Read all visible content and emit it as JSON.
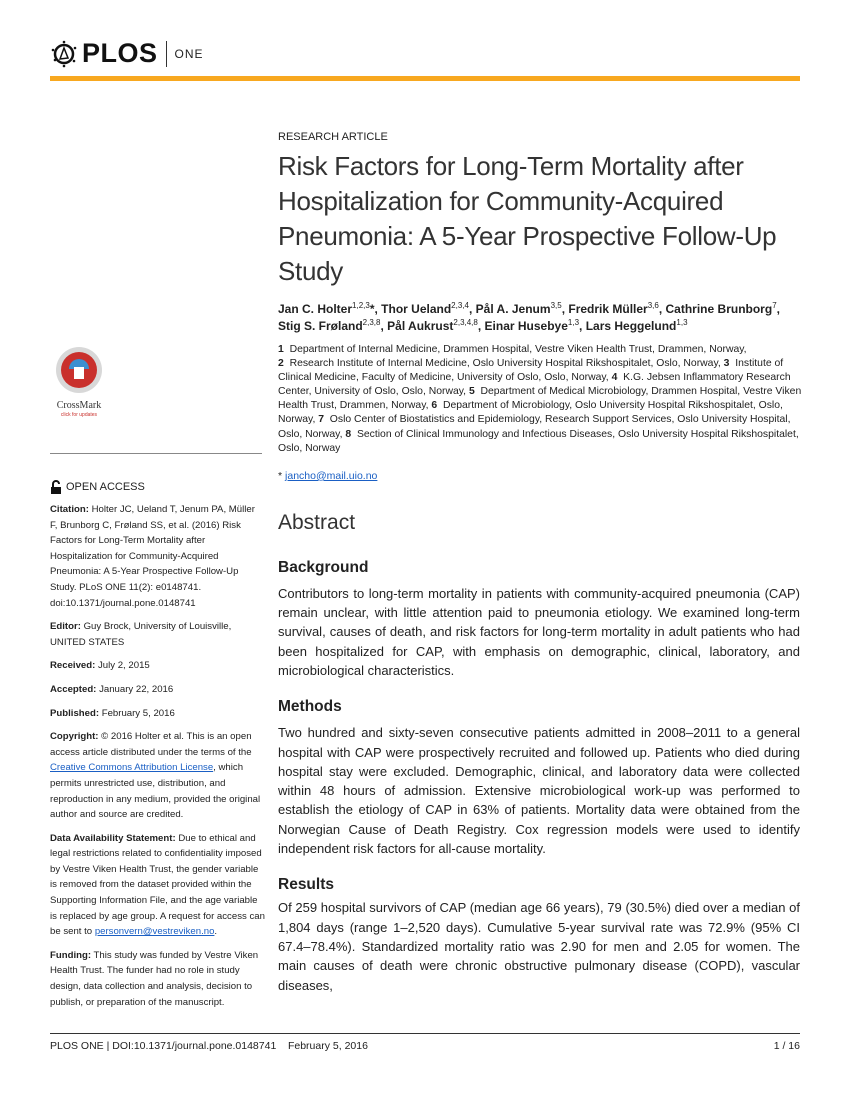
{
  "header": {
    "brand": "PLOS",
    "journal": "ONE",
    "accent": "#f8a81f"
  },
  "article_type": "RESEARCH ARTICLE",
  "title": "Risk Factors for Long-Term Mortality after Hospitalization for Community-Acquired Pneumonia: A 5-Year Prospective Follow-Up Study",
  "authors": [
    {
      "name": "Jan C. Holter",
      "sup": "1,2,3",
      "mark": "*"
    },
    {
      "name": "Thor Ueland",
      "sup": "2,3,4"
    },
    {
      "name": "Pål A. Jenum",
      "sup": "3,5"
    },
    {
      "name": "Fredrik Müller",
      "sup": "3,6"
    },
    {
      "name": "Cathrine Brunborg",
      "sup": "7"
    },
    {
      "name": "Stig S. Frøland",
      "sup": "2,3,8"
    },
    {
      "name": "Pål Aukrust",
      "sup": "2,3,4,8"
    },
    {
      "name": "Einar Husebye",
      "sup": "1,3"
    },
    {
      "name": "Lars Heggelund",
      "sup": "1,3"
    }
  ],
  "affiliations": [
    {
      "n": "1",
      "text": "Department of Internal Medicine, Drammen Hospital, Vestre Viken Health Trust, Drammen, Norway,"
    },
    {
      "n": "2",
      "text": "Research Institute of Internal Medicine, Oslo University Hospital Rikshospitalet, Oslo, Norway,"
    },
    {
      "n": "3",
      "text": "Institute of Clinical Medicine, Faculty of Medicine, University of Oslo, Oslo, Norway,"
    },
    {
      "n": "4",
      "text": "K.G. Jebsen Inflammatory Research Center, University of Oslo, Oslo, Norway,"
    },
    {
      "n": "5",
      "text": "Department of Medical Microbiology, Drammen Hospital, Vestre Viken Health Trust, Drammen, Norway,"
    },
    {
      "n": "6",
      "text": "Department of Microbiology, Oslo University Hospital Rikshospitalet, Oslo, Norway,"
    },
    {
      "n": "7",
      "text": "Oslo Center of Biostatistics and Epidemiology, Research Support Services, Oslo University Hospital, Oslo, Norway,"
    },
    {
      "n": "8",
      "text": "Section of Clinical Immunology and Infectious Diseases, Oslo University Hospital Rikshospitalet, Oslo, Norway"
    }
  ],
  "corresponding": {
    "mark": "*",
    "email": "jancho@mail.uio.no"
  },
  "abstract": {
    "heading": "Abstract",
    "sections": [
      {
        "heading": "Background",
        "text": "Contributors to long-term mortality in patients with community-acquired pneumonia (CAP) remain unclear, with little attention paid to pneumonia etiology. We examined long-term survival, causes of death, and risk factors for long-term mortality in adult patients who had been hospitalized for CAP, with emphasis on demographic, clinical, laboratory, and microbiological characteristics."
      },
      {
        "heading": "Methods",
        "text": "Two hundred and sixty-seven consecutive patients admitted in 2008–2011 to a general hospital with CAP were prospectively recruited and followed up. Patients who died during hospital stay were excluded. Demographic, clinical, and laboratory data were collected within 48 hours of admission. Extensive microbiological work-up was performed to establish the etiology of CAP in 63% of patients. Mortality data were obtained from the Norwegian Cause of Death Registry. Cox regression models were used to identify independent risk factors for all-cause mortality."
      },
      {
        "heading": "Results",
        "text": "Of 259 hospital survivors of CAP (median age 66 years), 79 (30.5%) died over a median of 1,804 days (range 1–2,520 days). Cumulative 5-year survival rate was 72.9% (95% CI 67.4–78.4%). Standardized mortality ratio was 2.90 for men and 2.05 for women. The main causes of death were chronic obstructive pulmonary disease (COPD), vascular diseases,"
      }
    ]
  },
  "sidebar": {
    "crossmark": "CrossMark",
    "crossmark_sub": "click for updates",
    "open_access": "OPEN ACCESS",
    "citation_label": "Citation:",
    "citation": "Holter JC, Ueland T, Jenum PA, Müller F, Brunborg C, Frøland SS, et al. (2016) Risk Factors for Long-Term Mortality after Hospitalization for Community-Acquired Pneumonia: A 5-Year Prospective Follow-Up Study. PLoS ONE 11(2): e0148741. doi:10.1371/journal.pone.0148741",
    "editor_label": "Editor:",
    "editor": "Guy Brock, University of Louisville, UNITED STATES",
    "received_label": "Received:",
    "received": "July 2, 2015",
    "accepted_label": "Accepted:",
    "accepted": "January 22, 2016",
    "published_label": "Published:",
    "published": "February 5, 2016",
    "copyright_label": "Copyright:",
    "copyright_pre": "© 2016 Holter et al. This is an open access article distributed under the terms of the",
    "copyright_link": "Creative Commons Attribution License",
    "copyright_post": ", which permits unrestricted use, distribution, and reproduction in any medium, provided the original author and source are credited.",
    "data_label": "Data Availability Statement:",
    "data_text": "Due to ethical and legal restrictions related to confidentiality imposed by Vestre Viken Health Trust, the gender variable is removed from the dataset provided within the Supporting Information File, and the age variable is replaced by age group. A request for access can be sent to",
    "data_email": "personvern@vestreviken.no",
    "data_end": ".",
    "funding_label": "Funding:",
    "funding": "This study was funded by Vestre Viken Health Trust. The funder had no role in study design, data collection and analysis, decision to publish, or preparation of the manuscript."
  },
  "footer": {
    "left": "PLOS ONE | DOI:10.1371/journal.pone.0148741",
    "date": "February 5, 2016",
    "page": "1 / 16"
  }
}
